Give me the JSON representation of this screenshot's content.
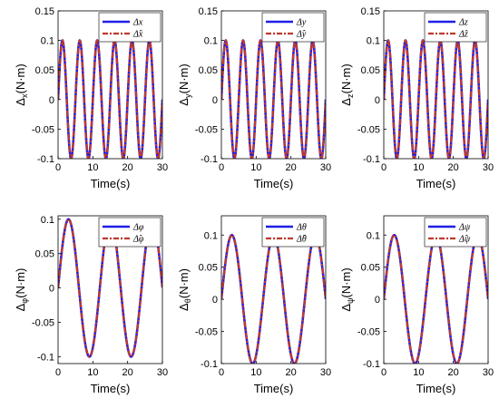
{
  "colors": {
    "actual": "#1f1fe6",
    "estimate": "#c0392b",
    "background": "#ffffff",
    "axis": "#000000"
  },
  "chart_data": [
    {
      "type": "line",
      "xlabel": "Time(s)",
      "ylabel": "Δx(N·m)",
      "xlim": [
        0,
        30
      ],
      "ylim": [
        -0.1,
        0.15
      ],
      "xticks": [
        0,
        10,
        20,
        30
      ],
      "yticks": [
        -0.1,
        -0.05,
        0,
        0.05,
        0.1,
        0.15
      ],
      "xtick_labels": [
        "0",
        "10",
        "20",
        "30"
      ],
      "ytick_labels": [
        "-0.1",
        "-0.05",
        "0",
        "0.05",
        "0.1",
        "0.15"
      ],
      "legend": [
        "Δx",
        "Δ̂x"
      ],
      "legend_position": "top-right",
      "series": [
        {
          "name": "Δx",
          "style": "solid",
          "amplitude": 0.1,
          "frequency": 0.2,
          "phase": 0,
          "x_start": 0,
          "x_end": 30
        },
        {
          "name": "Δ̂x",
          "style": "dash-dot",
          "amplitude": 0.1,
          "frequency": 0.2,
          "phase": 0,
          "x_start": 0,
          "x_end": 30
        }
      ]
    },
    {
      "type": "line",
      "xlabel": "Time(s)",
      "ylabel": "Δy(N·m)",
      "xlim": [
        0,
        30
      ],
      "ylim": [
        -0.1,
        0.15
      ],
      "xticks": [
        0,
        10,
        20,
        30
      ],
      "yticks": [
        -0.1,
        -0.05,
        0,
        0.05,
        0.1,
        0.15
      ],
      "xtick_labels": [
        "0",
        "10",
        "20",
        "30"
      ],
      "ytick_labels": [
        "-0.1",
        "-0.05",
        "0",
        "0.05",
        "0.1",
        "0.15"
      ],
      "legend": [
        "Δy",
        "Δ̂y"
      ],
      "legend_position": "top-right",
      "series": [
        {
          "name": "Δy",
          "style": "solid",
          "amplitude": 0.1,
          "frequency": 0.2,
          "phase": 0,
          "x_start": 0,
          "x_end": 30
        },
        {
          "name": "Δ̂y",
          "style": "dash-dot",
          "amplitude": 0.1,
          "frequency": 0.2,
          "phase": 0,
          "x_start": 0,
          "x_end": 30
        }
      ]
    },
    {
      "type": "line",
      "xlabel": "Time(s)",
      "ylabel": "Δz(N·m)",
      "xlim": [
        0,
        30
      ],
      "ylim": [
        -0.1,
        0.15
      ],
      "xticks": [
        0,
        10,
        20,
        30
      ],
      "yticks": [
        -0.1,
        -0.05,
        0,
        0.05,
        0.1,
        0.15
      ],
      "xtick_labels": [
        "0",
        "10",
        "20",
        "30"
      ],
      "ytick_labels": [
        "-0.1",
        "-0.05",
        "0",
        "0.05",
        "0.1",
        "0.15"
      ],
      "legend": [
        "Δz",
        "Δ̂z"
      ],
      "legend_position": "top-right",
      "series": [
        {
          "name": "Δz",
          "style": "solid",
          "amplitude": 0.1,
          "frequency": 0.2,
          "phase": 0,
          "x_start": 0,
          "x_end": 30
        },
        {
          "name": "Δ̂z",
          "style": "dash-dot",
          "amplitude": 0.1,
          "frequency": 0.2,
          "phase": 0,
          "x_start": 0,
          "x_end": 30
        }
      ]
    },
    {
      "type": "line",
      "xlabel": "Time(s)",
      "ylabel": "Δφ(N·m)",
      "xlim": [
        0,
        30
      ],
      "ylim": [
        -0.11,
        0.105
      ],
      "xticks": [
        0,
        10,
        20,
        30
      ],
      "yticks": [
        -0.1,
        -0.05,
        0,
        0.05,
        0.1
      ],
      "xtick_labels": [
        "0",
        "10",
        "20",
        "30"
      ],
      "ytick_labels": [
        "-0.1",
        "-0.05",
        "0",
        "0.05",
        "0.1"
      ],
      "legend": [
        "Δφ",
        "Δ̂φ"
      ],
      "legend_position": "top-right",
      "series": [
        {
          "name": "Δφ",
          "style": "solid",
          "amplitude": 0.1,
          "frequency": 0.0833,
          "phase": 0,
          "x_start": 0,
          "x_end": 30
        },
        {
          "name": "Δ̂φ",
          "style": "dash-dot",
          "amplitude": 0.1,
          "frequency": 0.0833,
          "phase": 0,
          "x_start": 0,
          "x_end": 30
        }
      ]
    },
    {
      "type": "line",
      "xlabel": "Time(s)",
      "ylabel": "Δθ(N·m)",
      "xlim": [
        0,
        30
      ],
      "ylim": [
        -0.1,
        0.13
      ],
      "xticks": [
        0,
        10,
        20,
        30
      ],
      "yticks": [
        -0.1,
        -0.05,
        0,
        0.05,
        0.1
      ],
      "xtick_labels": [
        "0",
        "10",
        "20",
        "30"
      ],
      "ytick_labels": [
        "-0.1",
        "-0.05",
        "0",
        "0.05",
        "0.1"
      ],
      "legend": [
        "Δθ",
        "Δ̂θ"
      ],
      "legend_position": "top-right",
      "series": [
        {
          "name": "Δθ",
          "style": "solid",
          "amplitude": 0.1,
          "frequency": 0.0833,
          "phase": 0,
          "x_start": 0,
          "x_end": 30
        },
        {
          "name": "Δ̂θ",
          "style": "dash-dot",
          "amplitude": 0.1,
          "frequency": 0.0833,
          "phase": 0,
          "x_start": 0,
          "x_end": 30
        }
      ]
    },
    {
      "type": "line",
      "xlabel": "Time(s)",
      "ylabel": "Δψ(N·m)",
      "xlim": [
        0,
        30
      ],
      "ylim": [
        -0.1,
        0.13
      ],
      "xticks": [
        0,
        10,
        20,
        30
      ],
      "yticks": [
        -0.1,
        -0.05,
        0,
        0.05,
        0.1
      ],
      "xtick_labels": [
        "0",
        "10",
        "20",
        "30"
      ],
      "ytick_labels": [
        "-0.1",
        "-0.05",
        "0",
        "0.05",
        "0.1"
      ],
      "legend": [
        "Δψ",
        "Δ̂ψ"
      ],
      "legend_position": "top-right",
      "series": [
        {
          "name": "Δψ",
          "style": "solid",
          "amplitude": 0.1,
          "frequency": 0.0833,
          "phase": 0,
          "x_start": 0,
          "x_end": 30
        },
        {
          "name": "Δ̂ψ",
          "style": "dash-dot",
          "amplitude": 0.1,
          "frequency": 0.0833,
          "phase": 0,
          "x_start": 0,
          "x_end": 30
        }
      ]
    }
  ]
}
